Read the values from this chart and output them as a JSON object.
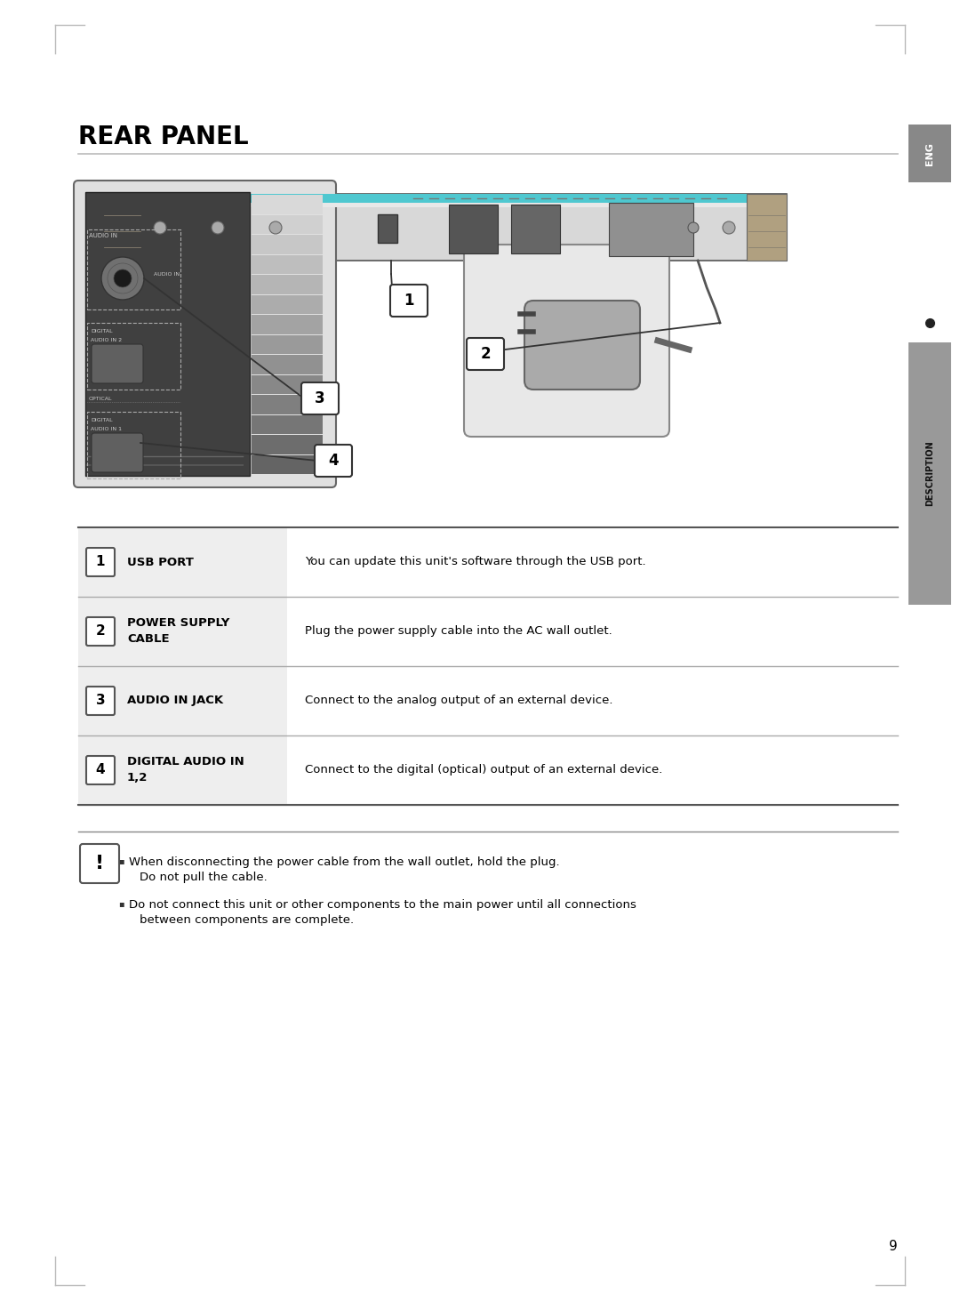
{
  "title": "REAR PANEL",
  "bg_color": "#ffffff",
  "title_color": "#000000",
  "title_fontsize": 20,
  "page_number": "9",
  "table_rows": [
    {
      "num": "1",
      "label": "USB PORT",
      "label2": "",
      "description": "You can update this unit's software through the USB port."
    },
    {
      "num": "2",
      "label": "POWER SUPPLY",
      "label2": "CABLE",
      "description": "Plug the power supply cable into the AC wall outlet."
    },
    {
      "num": "3",
      "label": "AUDIO IN JACK",
      "label2": "",
      "description": "Connect to the analog output of an external device."
    },
    {
      "num": "4",
      "label": "DIGITAL AUDIO IN",
      "label2": "1,2",
      "description": "Connect to the digital (optical) output of an external device."
    }
  ],
  "corner_line_color": "#bbbbbb",
  "eng_tab_color": "#888888",
  "desc_tab_color": "#999999",
  "header_line_color": "#bbbbbb",
  "table_divider_color": "#aaaaaa",
  "table_border_color": "#555555",
  "left_col_bg": "#eeeeee",
  "right_col_bg": "#ffffff"
}
